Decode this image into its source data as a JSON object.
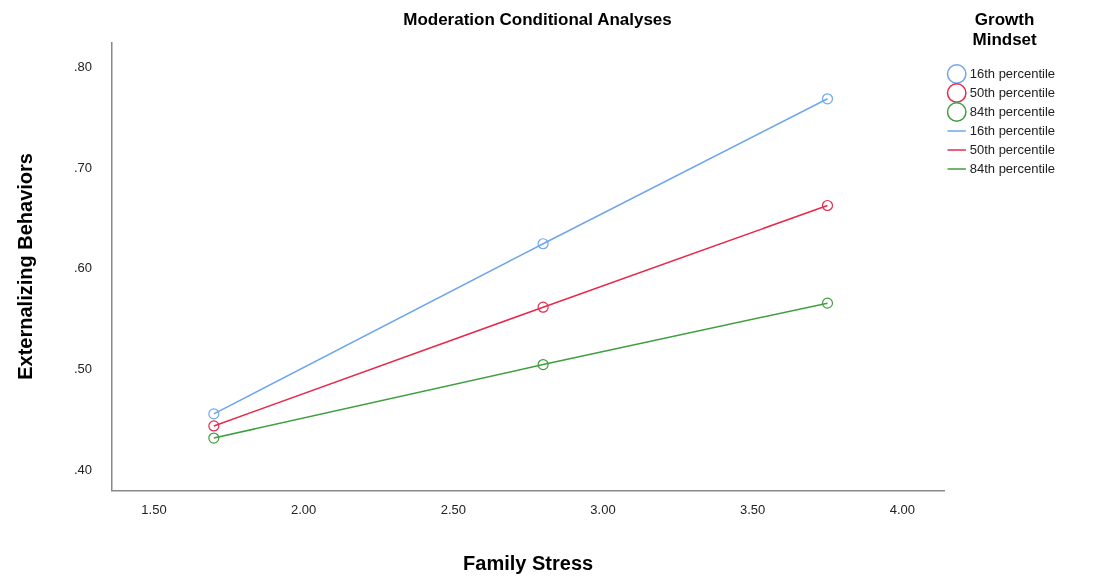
{
  "chart_data": {
    "type": "line",
    "title": "Moderation Conditional Analyses",
    "xlabel": "Family Stress",
    "ylabel": "Externalizing Behaviors",
    "legend_title": "Growth Mindset",
    "x": [
      1.7,
      2.8,
      3.75
    ],
    "series": [
      {
        "name": "16th percentile",
        "type": "scatter",
        "marker": "circle",
        "color": "#6fa6ec",
        "values": [
          0.456,
          0.625,
          0.769
        ]
      },
      {
        "name": "50th percentile",
        "type": "scatter",
        "marker": "circle",
        "color": "#e52a4c",
        "values": [
          0.444,
          0.562,
          0.663
        ]
      },
      {
        "name": "84th percentile",
        "type": "scatter",
        "marker": "circle",
        "color": "#3f9e3f",
        "values": [
          0.432,
          0.505,
          0.566
        ]
      },
      {
        "name": "16th percentile",
        "marker": "none",
        "color": "#6fa6ec",
        "values": [
          0.456,
          0.625,
          0.769
        ]
      },
      {
        "name": "50th percentile",
        "marker": "none",
        "color": "#e52a4c",
        "values": [
          0.444,
          0.562,
          0.663
        ]
      },
      {
        "name": "84th percentile",
        "marker": "none",
        "color": "#3f9e3f",
        "values": [
          0.432,
          0.505,
          0.566
        ]
      }
    ],
    "xlim": [
      1.36,
      4.14
    ],
    "xticks": [
      {
        "value": 1.5,
        "label": "1.50"
      },
      {
        "value": 2,
        "label": "2.00"
      },
      {
        "value": 2.5,
        "label": "2.50"
      },
      {
        "value": 3,
        "label": "3.00"
      },
      {
        "value": 3.5,
        "label": "3.50"
      },
      {
        "value": 4,
        "label": "4.00"
      }
    ],
    "ylim": [
      0.38,
      0.825
    ],
    "yticks": [
      {
        "value": 0.4,
        "label": ".40"
      },
      {
        "value": 0.5,
        "label": ".50"
      },
      {
        "value": 0.6,
        "label": ".60"
      },
      {
        "value": 0.7,
        "label": ".70"
      },
      {
        "value": 0.8,
        "label": ".80"
      }
    ],
    "grid": false,
    "legend": "right"
  }
}
